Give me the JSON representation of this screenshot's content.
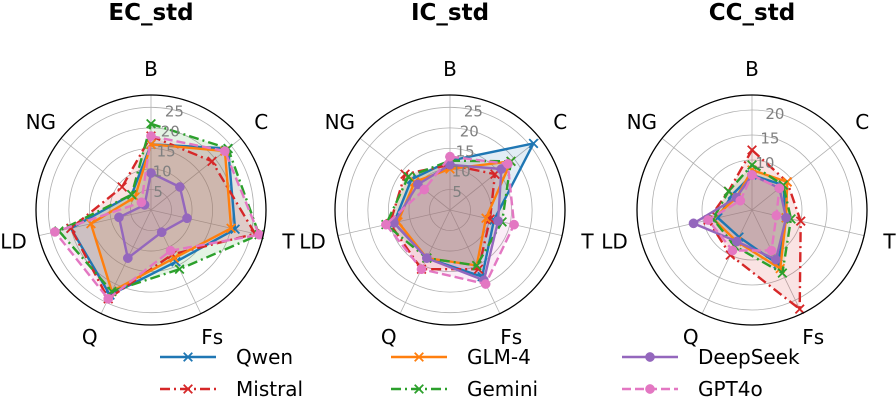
{
  "chart_data": {
    "type": "radar",
    "axes": [
      "B",
      "C",
      "T",
      "Fs",
      "Q",
      "LD",
      "NG"
    ],
    "legend": [
      {
        "name": "Qwen",
        "color": "#1f77b4",
        "marker": "x",
        "dash": "solid"
      },
      {
        "name": "Mistral",
        "color": "#d62728",
        "marker": "x",
        "dash": "dashdot"
      },
      {
        "name": "GLM-4",
        "color": "#ff7f0e",
        "marker": "x",
        "dash": "solid"
      },
      {
        "name": "Gemini",
        "color": "#2ca02c",
        "marker": "x",
        "dash": "dashdot"
      },
      {
        "name": "DeepSeek",
        "color": "#9467bd",
        "marker": "o",
        "dash": "solid"
      },
      {
        "name": "GPT4o",
        "color": "#e377c2",
        "marker": "o",
        "dash": "dashed"
      }
    ],
    "panels": [
      {
        "title": "EC_std",
        "rmax": 28,
        "ticks": [
          5,
          10,
          15,
          20,
          25
        ],
        "series": [
          {
            "name": "Qwen",
            "values": [
              16,
              24,
              21,
              14,
              23,
              20,
              6
            ]
          },
          {
            "name": "Mistral",
            "values": [
              18,
              19,
              26,
              12,
              24,
              20,
              9
            ]
          },
          {
            "name": "GLM-4",
            "values": [
              16,
              23,
              20,
              13,
              22,
              15,
              5
            ]
          },
          {
            "name": "Gemini",
            "values": [
              21,
              24,
              27,
              16,
              22,
              23,
              6
            ]
          },
          {
            "name": "DeepSeek",
            "values": [
              9,
              9,
              9,
              6,
              13,
              8,
              2
            ]
          },
          {
            "name": "GPT4o",
            "values": [
              18,
              23,
              27,
              11,
              24,
              24,
              3
            ]
          }
        ]
      },
      {
        "title": "IC_std",
        "rmax": 28,
        "ticks": [
          5,
          10,
          15,
          20,
          25
        ],
        "series": [
          {
            "name": "Qwen",
            "values": [
              12,
              26,
              11,
              18,
              13,
              14,
              12
            ]
          },
          {
            "name": "Mistral",
            "values": [
              11,
              14,
              10,
              16,
              16,
              15,
              14
            ]
          },
          {
            "name": "GLM-4",
            "values": [
              10,
              19,
              9,
              15,
              13,
              13,
              11
            ]
          },
          {
            "name": "Gemini",
            "values": [
              12,
              19,
              13,
              15,
              13,
              16,
              13
            ]
          },
          {
            "name": "DeepSeek",
            "values": [
              11,
              16,
              12,
              19,
              13,
              14,
              10
            ]
          },
          {
            "name": "GPT4o",
            "values": [
              13,
              18,
              16,
              20,
              16,
              16,
              8
            ]
          }
        ]
      },
      {
        "title": "CC_std",
        "rmax": 23,
        "ticks": [
          10,
          15,
          20
        ],
        "series": [
          {
            "name": "Qwen",
            "values": [
              7,
              8,
              7,
              12,
              6,
              7,
              5
            ]
          },
          {
            "name": "Mistral",
            "values": [
              12,
              9,
              10,
              22,
              10,
              9,
              6
            ]
          },
          {
            "name": "GLM-4",
            "values": [
              8,
              9,
              7,
              13,
              7,
              8,
              4
            ]
          },
          {
            "name": "Gemini",
            "values": [
              9,
              8,
              8,
              14,
              8,
              8,
              6
            ]
          },
          {
            "name": "DeepSeek",
            "values": [
              7,
              7,
              7,
              11,
              7,
              12,
              4
            ]
          },
          {
            "name": "GPT4o",
            "values": [
              7,
              7,
              5,
              9,
              9,
              9,
              3
            ]
          }
        ]
      }
    ]
  }
}
